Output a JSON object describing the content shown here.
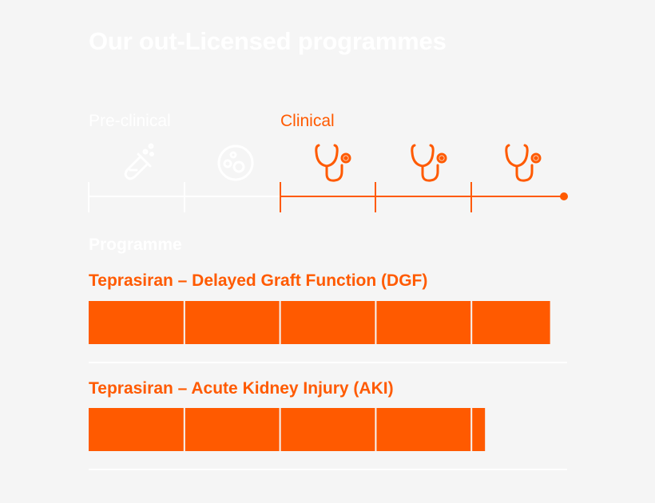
{
  "title": "Our out-Licensed programmes",
  "phases": {
    "preclinical_label": "Pre-clinical",
    "clinical_label": "Clinical"
  },
  "stage_icons": [
    "test-tube-icon",
    "petri-dish-icon",
    "stethoscope-icon",
    "stethoscope-icon",
    "stethoscope-icon"
  ],
  "section_label": "Programme",
  "colors": {
    "accent": "#ff5a00",
    "inactive": "#ffffff",
    "background": "#f5f5f5"
  },
  "chart_data": {
    "type": "bar",
    "orientation": "horizontal",
    "stages": 5,
    "xlim": [
      0,
      5
    ],
    "series": [
      {
        "name": "Teprasiran – Delayed Graft Function (DGF)",
        "value": 4.83
      },
      {
        "name": "Teprasiran – Acute Kidney Injury (AKI)",
        "value": 4.15
      }
    ]
  }
}
